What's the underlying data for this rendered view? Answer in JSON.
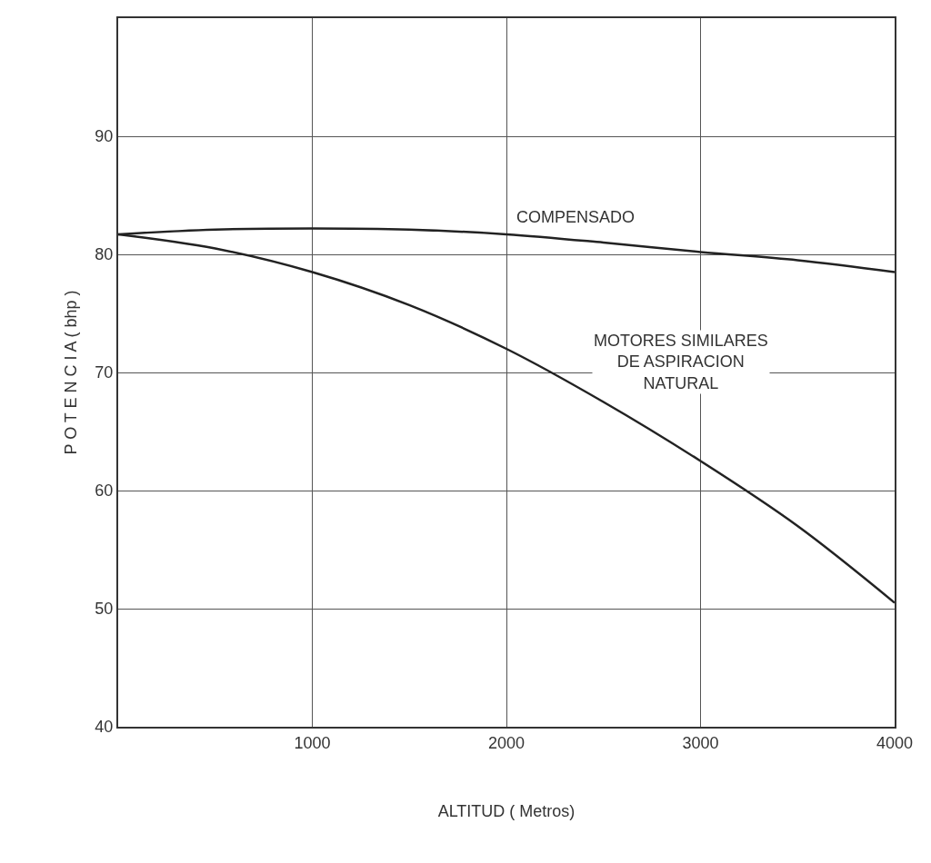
{
  "chart_data": {
    "type": "line",
    "xlabel": "ALTITUD ( Metros)",
    "ylabel": "P O T E N C I A ( bhp )",
    "x": [
      0,
      500,
      1000,
      1500,
      2000,
      2500,
      3000,
      3500,
      4000
    ],
    "series": [
      {
        "color": "#222222",
        "values": [
          81.7,
          82.1,
          82.2,
          82.1,
          81.7,
          81.0,
          80.2,
          79.5,
          78.5
        ]
      },
      {
        "color": "#222222",
        "values": [
          81.7,
          80.5,
          78.5,
          75.7,
          72.0,
          67.5,
          62.5,
          57.0,
          50.5
        ]
      }
    ],
    "xlim": [
      0,
      4000
    ],
    "ylim": [
      40,
      100
    ],
    "xticks": [
      1000,
      2000,
      3000,
      4000
    ],
    "yticks": [
      40,
      50,
      60,
      70,
      80,
      90
    ],
    "grid": true,
    "legend": false,
    "marker": "none",
    "line_style": "solid",
    "annotations": [
      "COMPENSADO",
      "MOTORES SIMILARES\nDE ASPIRACION\nNATURAL"
    ]
  }
}
